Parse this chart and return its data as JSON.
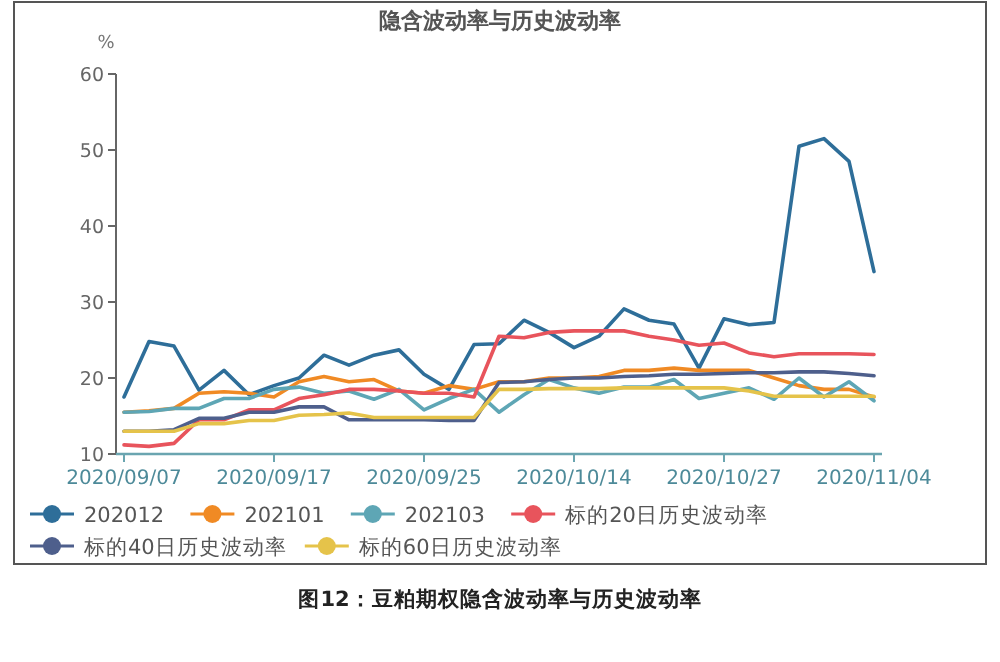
{
  "chart_data": {
    "type": "line",
    "title": "隐含波动率与历史波动率",
    "ylabel": "%",
    "annotations": [
      "图12：豆粕期权隐含波动率与历史波动率"
    ],
    "categories": [
      "2020/09/07",
      null,
      null,
      null,
      null,
      null,
      "2020/09/17",
      null,
      null,
      null,
      null,
      null,
      "2020/09/25",
      null,
      null,
      null,
      null,
      null,
      "2020/10/14",
      null,
      null,
      null,
      null,
      null,
      "2020/10/27",
      null,
      null,
      null,
      null,
      null,
      "2020/11/04"
    ],
    "ylim": [
      10,
      60
    ],
    "yticks": [
      10,
      20,
      30,
      40,
      50,
      60
    ],
    "grid": false,
    "legend": "bottom",
    "marker": "none",
    "line_style": "solid",
    "series": [
      {
        "name": "202012",
        "color": "#2e6e99",
        "values": [
          17.5,
          24.8,
          24.2,
          18.4,
          21,
          17.8,
          19,
          20,
          23,
          21.7,
          23,
          23.7,
          20.5,
          18.5,
          24.4,
          24.5,
          27.6,
          26,
          24,
          25.5,
          29.1,
          27.6,
          27.1,
          21.3,
          27.8,
          27,
          27.3,
          50.5,
          51.5,
          48.5,
          34
        ]
      },
      {
        "name": "202101",
        "color": "#f08a24",
        "values": [
          15.5,
          15.7,
          16,
          18,
          18.2,
          18,
          17.5,
          19.5,
          20.2,
          19.5,
          19.8,
          18.3,
          18,
          19,
          18.5,
          19.5,
          19.5,
          20,
          20,
          20.2,
          21,
          21,
          21.3,
          21,
          21,
          21,
          20,
          19,
          18.5,
          18.5,
          17.5
        ]
      },
      {
        "name": "202103",
        "color": "#5ea6b5",
        "values": [
          15.5,
          15.6,
          16,
          16,
          17.3,
          17.3,
          18.5,
          18.8,
          18,
          18.3,
          17.2,
          18.5,
          15.8,
          17.3,
          18.5,
          15.5,
          17.8,
          19.8,
          18.7,
          18,
          18.8,
          18.8,
          19.8,
          17.3,
          18,
          18.7,
          17.2,
          20,
          17.5,
          19.5,
          17
        ]
      },
      {
        "name": "标的20日历史波动率",
        "color": "#e8545c",
        "values": [
          11.2,
          11,
          11.4,
          14.5,
          14.5,
          15.8,
          15.8,
          17.3,
          17.8,
          18.5,
          18.5,
          18.3,
          18,
          18,
          17.5,
          25.5,
          25.3,
          26,
          26.2,
          26.2,
          26.2,
          25.5,
          25,
          24.3,
          24.6,
          23.3,
          22.8,
          23.2,
          23.2,
          23.2,
          23.1
        ]
      },
      {
        "name": "标的40日历史波动率",
        "color": "#4e5f8c",
        "values": [
          13,
          13,
          13.2,
          14.7,
          14.7,
          15.5,
          15.5,
          16.2,
          16.2,
          14.5,
          14.5,
          14.5,
          14.5,
          14.4,
          14.4,
          19.4,
          19.5,
          19.8,
          20,
          20,
          20.2,
          20.3,
          20.5,
          20.5,
          20.6,
          20.7,
          20.7,
          20.8,
          20.8,
          20.6,
          20.3
        ]
      },
      {
        "name": "标的60日历史波动率",
        "color": "#e5c34a",
        "values": [
          13,
          13,
          13,
          14,
          14,
          14.4,
          14.4,
          15.1,
          15.2,
          15.4,
          14.8,
          14.8,
          14.8,
          14.8,
          14.8,
          18.5,
          18.5,
          18.6,
          18.6,
          18.6,
          18.7,
          18.7,
          18.7,
          18.7,
          18.7,
          18.3,
          17.6,
          17.6,
          17.6,
          17.6,
          17.6
        ]
      }
    ]
  }
}
